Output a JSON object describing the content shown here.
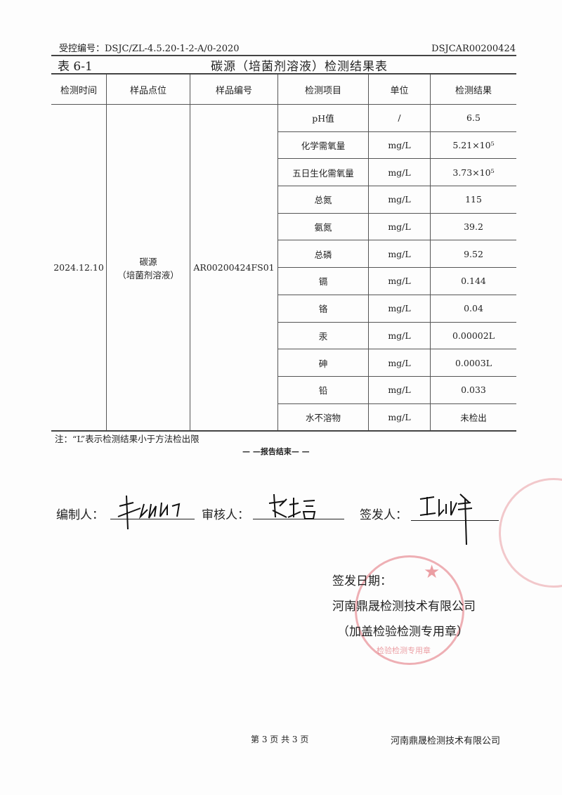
{
  "header": {
    "control_no": "受控编号：DSJC/ZL-4.5.20-1-2-A/0-2020",
    "report_no": "DSJCAR00200424",
    "table_no": "表 6-1",
    "title": "碳源（培菌剂溶液）检测结果表"
  },
  "table": {
    "columns": [
      "检测时间",
      "样品点位",
      "样品编号",
      "检测项目",
      "单位",
      "检测结果"
    ],
    "date": "2024.12.10",
    "location_line1": "碳源",
    "location_line2": "（培菌剂溶液）",
    "sample_id": "AR00200424FS01",
    "rows": [
      {
        "item": "pH值",
        "unit": "/",
        "result": "6.5"
      },
      {
        "item": "化学需氧量",
        "unit": "mg/L",
        "result": "5.21×10⁵"
      },
      {
        "item": "五日生化需氧量",
        "unit": "mg/L",
        "result": "3.73×10⁵"
      },
      {
        "item": "总氮",
        "unit": "mg/L",
        "result": "115"
      },
      {
        "item": "氨氮",
        "unit": "mg/L",
        "result": "39.2"
      },
      {
        "item": "总磷",
        "unit": "mg/L",
        "result": "9.52"
      },
      {
        "item": "镉",
        "unit": "mg/L",
        "result": "0.144"
      },
      {
        "item": "铬",
        "unit": "mg/L",
        "result": "0.04"
      },
      {
        "item": "汞",
        "unit": "mg/L",
        "result": "0.00002L"
      },
      {
        "item": "砷",
        "unit": "mg/L",
        "result": "0.0003L"
      },
      {
        "item": "铅",
        "unit": "mg/L",
        "result": "0.033"
      },
      {
        "item": "水不溶物",
        "unit": "mg/L",
        "result": "未检出"
      }
    ]
  },
  "note": "注：“L”表示检测结果小于方法检出限",
  "end": "— —报告结束— —",
  "signatures": {
    "compiler_label": "编制人：",
    "reviewer_label": "审核人：",
    "issuer_label": "签发人："
  },
  "issue_date_label": "签发日期：",
  "company": "河南鼎晟检测技术有限公司",
  "stamp_note": "（加盖检验检测专用章）",
  "stamp": {
    "text": "河南鼎晟检测技术有限公司",
    "sub": "检验检测专用章",
    "color": "#dc505a"
  },
  "footer": {
    "page": "第 3 页 共 3 页",
    "company": "河南鼎晟检测技术有限公司"
  }
}
